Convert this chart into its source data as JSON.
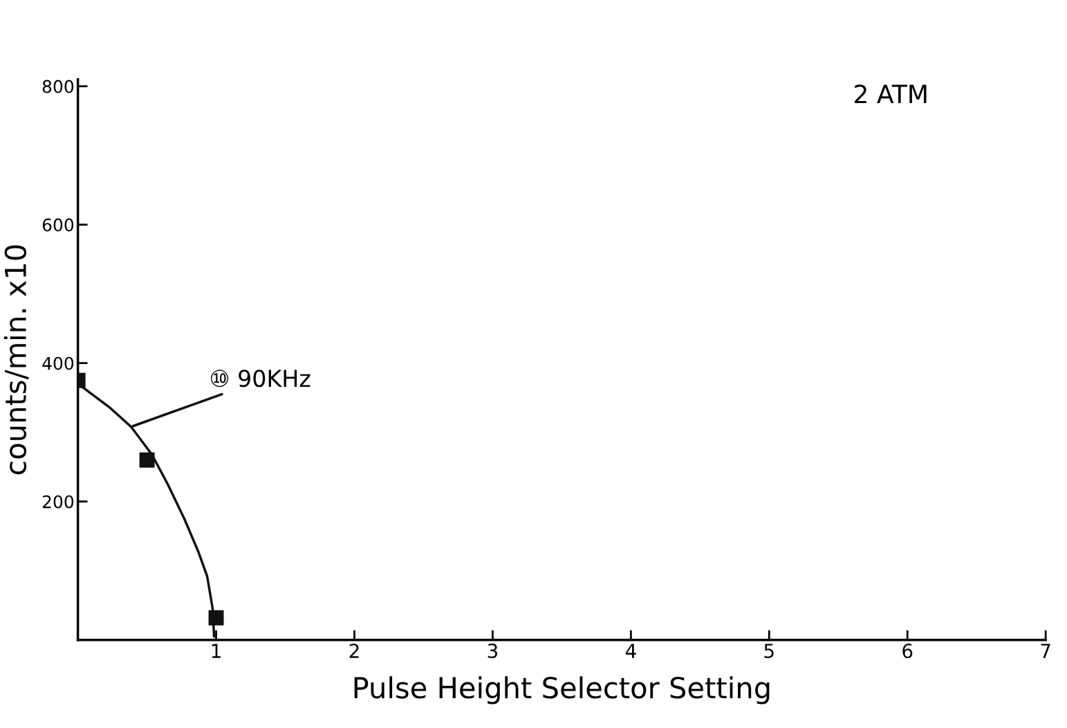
{
  "chart_data": {
    "type": "scatter",
    "xlabel": "Pulse Height Selector Setting",
    "ylabel": "counts/min. x10",
    "x": [
      0,
      0.5,
      1
    ],
    "series": [
      {
        "color": "#111111",
        "marker": "square",
        "values": [
          375,
          260,
          32
        ]
      },
      {
        "type": "line",
        "color": "#111111",
        "marker": "none",
        "line_style": "solid",
        "x": [
          0.035,
          0.235,
          0.385,
          0.535,
          0.65,
          0.77,
          0.87,
          0.935,
          0.975,
          0.985
        ],
        "values": [
          365,
          335,
          308,
          268,
          225,
          175,
          128,
          92,
          45,
          5
        ]
      }
    ],
    "xlim": [
      0,
      7
    ],
    "xticks": [
      1,
      2,
      3,
      4,
      5,
      6,
      7
    ],
    "ylim": [
      0,
      810
    ],
    "yticks": [
      200,
      400,
      600,
      800
    ],
    "grid": false,
    "annotations": [
      {
        "text": "⑩ 90KHz",
        "x": 0.385,
        "y": 308
      },
      "2 ATM"
    ]
  }
}
